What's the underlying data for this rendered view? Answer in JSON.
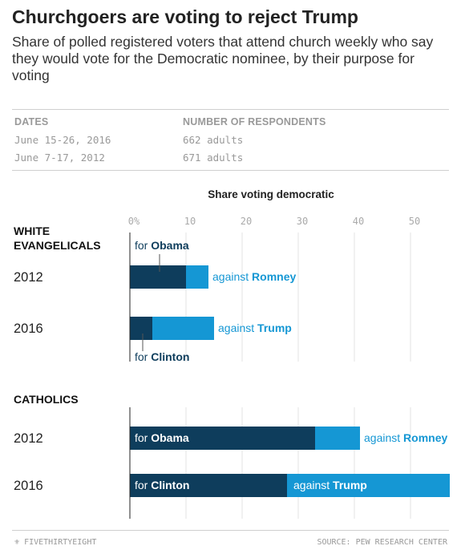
{
  "header": {
    "title": "Churchgoers are voting to reject Trump",
    "subtitle": "Share of polled registered voters that attend church weekly who say they would vote for the Democratic nominee, by their purpose for voting"
  },
  "table": {
    "columns": [
      "DATES",
      "NUMBER OF RESPONDENTS"
    ],
    "rows": [
      {
        "dates": "June 15-26, 2016",
        "respondents": "662 adults"
      },
      {
        "dates": "June 7-17, 2012",
        "respondents": "671 adults"
      }
    ]
  },
  "footer": {
    "brand": "FIVETHIRTYEIGHT",
    "source": "SOURCE: PEW RESEARCH CENTER"
  },
  "colors": {
    "for": "#0e3d5c",
    "against": "#1597d4"
  },
  "chart_data": {
    "type": "bar",
    "orientation": "horizontal",
    "stacked": true,
    "title": "Share voting democratic",
    "xlim": [
      0,
      57
    ],
    "ticks": [
      {
        "value": 0,
        "label": "0%"
      },
      {
        "value": 10,
        "label": "10"
      },
      {
        "value": 20,
        "label": "20"
      },
      {
        "value": 30,
        "label": "30"
      },
      {
        "value": 40,
        "label": "40"
      },
      {
        "value": 50,
        "label": "50"
      }
    ],
    "groups": [
      {
        "name": "WHITE EVANGELICALS",
        "name_lines": [
          "WHITE",
          "EVANGELICALS"
        ],
        "rows": [
          {
            "year": "2012",
            "for_value": 10,
            "against_value": 4,
            "for_prefix": "for ",
            "for_name": "Obama",
            "against_prefix": "against ",
            "against_name": "Romney"
          },
          {
            "year": "2016",
            "for_value": 4,
            "against_value": 11,
            "for_prefix": "for ",
            "for_name": "Clinton",
            "against_prefix": "against ",
            "against_name": "Trump"
          }
        ]
      },
      {
        "name": "CATHOLICS",
        "name_lines": [
          "CATHOLICS"
        ],
        "rows": [
          {
            "year": "2012",
            "for_value": 33,
            "against_value": 8,
            "for_prefix": "for ",
            "for_name": "Obama",
            "against_prefix": "against ",
            "against_name": "Romney"
          },
          {
            "year": "2016",
            "for_value": 28,
            "against_value": 29,
            "for_prefix": "for ",
            "for_name": "Clinton",
            "against_prefix": "against ",
            "against_name": "Trump"
          }
        ]
      }
    ]
  }
}
